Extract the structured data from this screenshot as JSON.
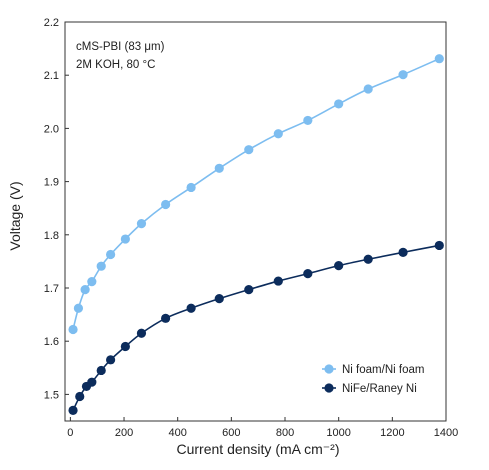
{
  "chart_data": {
    "type": "line",
    "xlabel": "Current density (mA cm⁻²)",
    "ylabel": "Voltage (V)",
    "xlim": [
      -20,
      1400
    ],
    "ylim": [
      1.45,
      2.2
    ],
    "x_ticks": [
      0,
      200,
      400,
      600,
      800,
      1000,
      1200,
      1400
    ],
    "y_ticks": [
      1.5,
      1.6,
      1.7,
      1.8,
      1.9,
      2.0,
      2.1,
      2.2
    ],
    "x_tick_labels": [
      "0",
      "200",
      "400",
      "600",
      "800",
      "1000",
      "1200",
      "1400"
    ],
    "y_tick_labels": [
      "1.5",
      "1.6",
      "1.7",
      "1.8",
      "1.9",
      "2.0",
      "2.1",
      "2.2"
    ],
    "annotations": [
      "cMS-PBI (83 μm)",
      "2M KOH, 80 °C"
    ],
    "legend_position": "bottom-right",
    "grid": false,
    "series": [
      {
        "name": "Ni foam/Ni foam",
        "color": "#7dbdf0",
        "marker": "circle",
        "x": [
          10,
          30,
          55,
          80,
          115,
          150,
          205,
          265,
          355,
          450,
          555,
          665,
          775,
          885,
          1000,
          1110,
          1240,
          1375
        ],
        "y": [
          1.622,
          1.662,
          1.697,
          1.712,
          1.741,
          1.763,
          1.792,
          1.821,
          1.857,
          1.889,
          1.925,
          1.96,
          1.99,
          2.015,
          2.046,
          2.074,
          2.101,
          2.131
        ]
      },
      {
        "name": "NiFe/Raney Ni",
        "color": "#0c2c5c",
        "marker": "circle",
        "x": [
          10,
          35,
          60,
          80,
          115,
          150,
          205,
          265,
          355,
          450,
          555,
          665,
          775,
          885,
          1000,
          1110,
          1240,
          1375
        ],
        "y": [
          1.47,
          1.496,
          1.515,
          1.523,
          1.545,
          1.565,
          1.59,
          1.615,
          1.643,
          1.662,
          1.68,
          1.697,
          1.713,
          1.727,
          1.742,
          1.754,
          1.767,
          1.78
        ]
      }
    ]
  }
}
